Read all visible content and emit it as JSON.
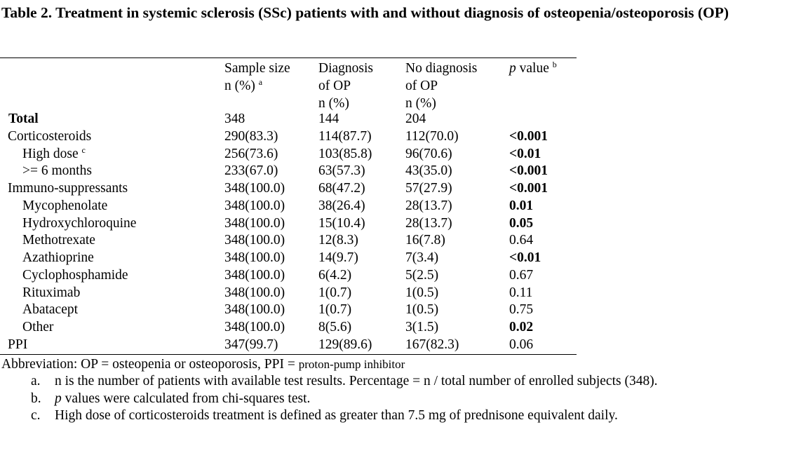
{
  "title": "Table 2. Treatment in systemic sclerosis (SSc) patients with and without diagnosis of osteopenia/osteoporosis (OP)",
  "headers": {
    "sample": [
      "Sample size",
      "n (%)"
    ],
    "sample_sup": "a",
    "diag": [
      "Diagnosis",
      "of OP",
      "n (%)"
    ],
    "nodiag": [
      "No diagnosis",
      "of OP",
      "n (%)"
    ],
    "p_italic": "p",
    "p_rest": " value",
    "p_sup": "b"
  },
  "rows": [
    {
      "label": "Total",
      "sample": "348",
      "diag": "144",
      "nodiag": "204",
      "p": ""
    },
    {
      "label": "Corticosteroids",
      "sample": "290(83.3)",
      "diag": "114(87.7)",
      "nodiag": "112(70.0)",
      "p": "<0.001"
    },
    {
      "label": "High dose",
      "sup": "c",
      "sample": "256(73.6)",
      "diag": "103(85.8)",
      "nodiag": "96(70.6)",
      "p": "<0.01"
    },
    {
      "label": ">= 6 months",
      "sample": "233(67.0)",
      "diag": "63(57.3)",
      "nodiag": "43(35.0)",
      "p": "<0.001"
    },
    {
      "label": "Immuno-suppressants",
      "sample": "348(100.0)",
      "diag": "68(47.2)",
      "nodiag": "57(27.9)",
      "p": "<0.001"
    },
    {
      "label": "Mycophenolate",
      "sample": "348(100.0)",
      "diag": "38(26.4)",
      "nodiag": "28(13.7)",
      "p": "0.01"
    },
    {
      "label": "Hydroxychloroquine",
      "sample": "348(100.0)",
      "diag": "15(10.4)",
      "nodiag": "28(13.7)",
      "p": "0.05"
    },
    {
      "label": "Methotrexate",
      "sample": "348(100.0)",
      "diag": "12(8.3)",
      "nodiag": "16(7.8)",
      "p": "0.64"
    },
    {
      "label": "Azathioprine",
      "sample": "348(100.0)",
      "diag": "14(9.7)",
      "nodiag": "7(3.4)",
      "p": "<0.01"
    },
    {
      "label": "Cyclophosphamide",
      "sample": "348(100.0)",
      "diag": "6(4.2)",
      "nodiag": "5(2.5)",
      "p": "0.67"
    },
    {
      "label": "Rituximab",
      "sample": "348(100.0)",
      "diag": "1(0.7)",
      "nodiag": "1(0.5)",
      "p": "0.11"
    },
    {
      "label": "Abatacept",
      "sample": "348(100.0)",
      "diag": "1(0.7)",
      "nodiag": "1(0.5)",
      "p": "0.75"
    },
    {
      "label": "Other",
      "sample": "348(100.0)",
      "diag": "8(5.6)",
      "nodiag": "3(1.5)",
      "p": "0.02"
    },
    {
      "label": "PPI",
      "sample": "347(99.7)",
      "diag": "129(89.6)",
      "nodiag": "167(82.3)",
      "p": "0.06"
    }
  ],
  "abbreviation": {
    "main": "Abbreviation: OP = osteopenia or osteoporosis, PPI = ",
    "small": "proton-pump inhibitor"
  },
  "footnotes": [
    {
      "marker": "a.",
      "text": "n is the number of patients with available test results. Percentage = n / total number of enrolled subjects (348)."
    },
    {
      "marker": "b.",
      "italic": "p",
      "text": " values were calculated from chi-squares test."
    },
    {
      "marker": "c.",
      "text": "High dose of corticosteroids treatment is defined as greater than 7.5 mg of prednisone equivalent daily."
    }
  ]
}
